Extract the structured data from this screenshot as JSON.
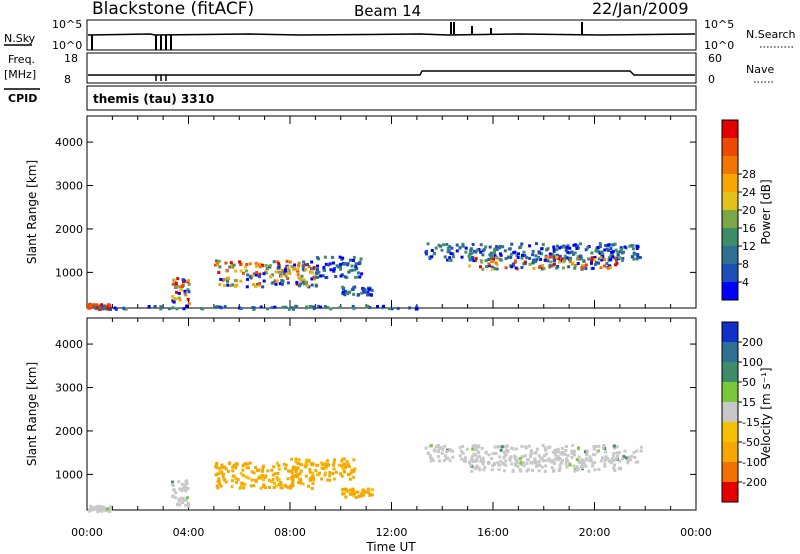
{
  "header": {
    "station": "Blackstone (fitACF)",
    "beam": "Beam 14",
    "date": "22/Jan/2009"
  },
  "strips": {
    "nsky_label": "N.Sky",
    "nsky_top": "10^5",
    "nsky_bottom": "10^0",
    "nsearch_label": "N.Search",
    "nsearch_top": "10^5",
    "nsearch_bottom": "10^0",
    "freq_label": "Freq.",
    "freq_unit": "[MHz]",
    "freq_top": "18",
    "freq_bottom": "8",
    "nave_label": "Nave",
    "nave_top": "60",
    "nave_bottom": "0",
    "cpid_label": "CPID",
    "cpid_value": "themis (tau) 3310"
  },
  "chart_data": [
    {
      "type": "heatmap",
      "name": "power",
      "ylabel": "Slant Range [km]",
      "xlabel": "",
      "xlim": [
        0,
        24
      ],
      "ylim": [
        180,
        4600
      ],
      "yticks": [
        "1000",
        "2000",
        "3000",
        "4000"
      ],
      "colorbar_label": "Power [dB]",
      "colorbar_ticks": [
        "4",
        "8",
        "12",
        "16",
        "20",
        "24",
        "28"
      ],
      "colorbar_colors": [
        "#0000ff",
        "#1c4fb8",
        "#2f6f92",
        "#3f8c6a",
        "#7aa848",
        "#e0c21a",
        "#f6a800",
        "#f27600",
        "#ed4a00",
        "#e40000"
      ],
      "regions": [
        {
          "t0": 0.0,
          "t1": 0.9,
          "r0": 180,
          "r1": 300,
          "level": "high"
        },
        {
          "t0": 3.3,
          "t1": 4.0,
          "r0": 300,
          "r1": 900,
          "level": "mixed"
        },
        {
          "t0": 5.0,
          "t1": 9.0,
          "r0": 700,
          "r1": 1300,
          "level": "mixed"
        },
        {
          "t0": 9.0,
          "t1": 10.8,
          "r0": 900,
          "r1": 1400,
          "level": "low"
        },
        {
          "t0": 10.0,
          "t1": 11.2,
          "r0": 500,
          "r1": 700,
          "level": "low"
        },
        {
          "t0": 13.3,
          "t1": 21.8,
          "r0": 1300,
          "r1": 1700,
          "level": "low"
        },
        {
          "t0": 15.0,
          "t1": 21.0,
          "r0": 1100,
          "r1": 1400,
          "level": "mixed"
        },
        {
          "t0": 0.0,
          "t1": 13.0,
          "r0": 180,
          "r1": 260,
          "level": "low"
        }
      ]
    },
    {
      "type": "heatmap",
      "name": "velocity",
      "ylabel": "Slant Range [km]",
      "xlabel": "Time UT",
      "xlim": [
        0,
        24
      ],
      "ylim": [
        180,
        4600
      ],
      "xticks": [
        "00:00",
        "04:00",
        "08:00",
        "12:00",
        "16:00",
        "20:00",
        "00:00"
      ],
      "yticks": [
        "1000",
        "2000",
        "3000",
        "4000"
      ],
      "colorbar_label": "Velocity [m s⁻¹]",
      "colorbar_ticks": [
        "200",
        "100",
        "50",
        "15",
        "-15",
        "-50",
        "-100",
        "-200"
      ],
      "colorbar_colors": [
        "#1030c8",
        "#2f6f92",
        "#3f8c6a",
        "#7ac83a",
        "#c8c8c8",
        "#f6c000",
        "#f6a800",
        "#f07000",
        "#e40000"
      ],
      "regions": [
        {
          "t0": 0.0,
          "t1": 0.9,
          "r0": 180,
          "r1": 300,
          "level": "grey"
        },
        {
          "t0": 3.3,
          "t1": 4.0,
          "r0": 300,
          "r1": 900,
          "level": "grey"
        },
        {
          "t0": 5.0,
          "t1": 9.0,
          "r0": 700,
          "r1": 1300,
          "level": "orange"
        },
        {
          "t0": 8.0,
          "t1": 10.5,
          "r0": 900,
          "r1": 1400,
          "level": "orange"
        },
        {
          "t0": 10.0,
          "t1": 11.2,
          "r0": 500,
          "r1": 700,
          "level": "orange"
        },
        {
          "t0": 13.3,
          "t1": 21.8,
          "r0": 1300,
          "r1": 1700,
          "level": "grey"
        },
        {
          "t0": 15.0,
          "t1": 21.0,
          "r0": 1100,
          "r1": 1400,
          "level": "grey"
        }
      ]
    }
  ]
}
